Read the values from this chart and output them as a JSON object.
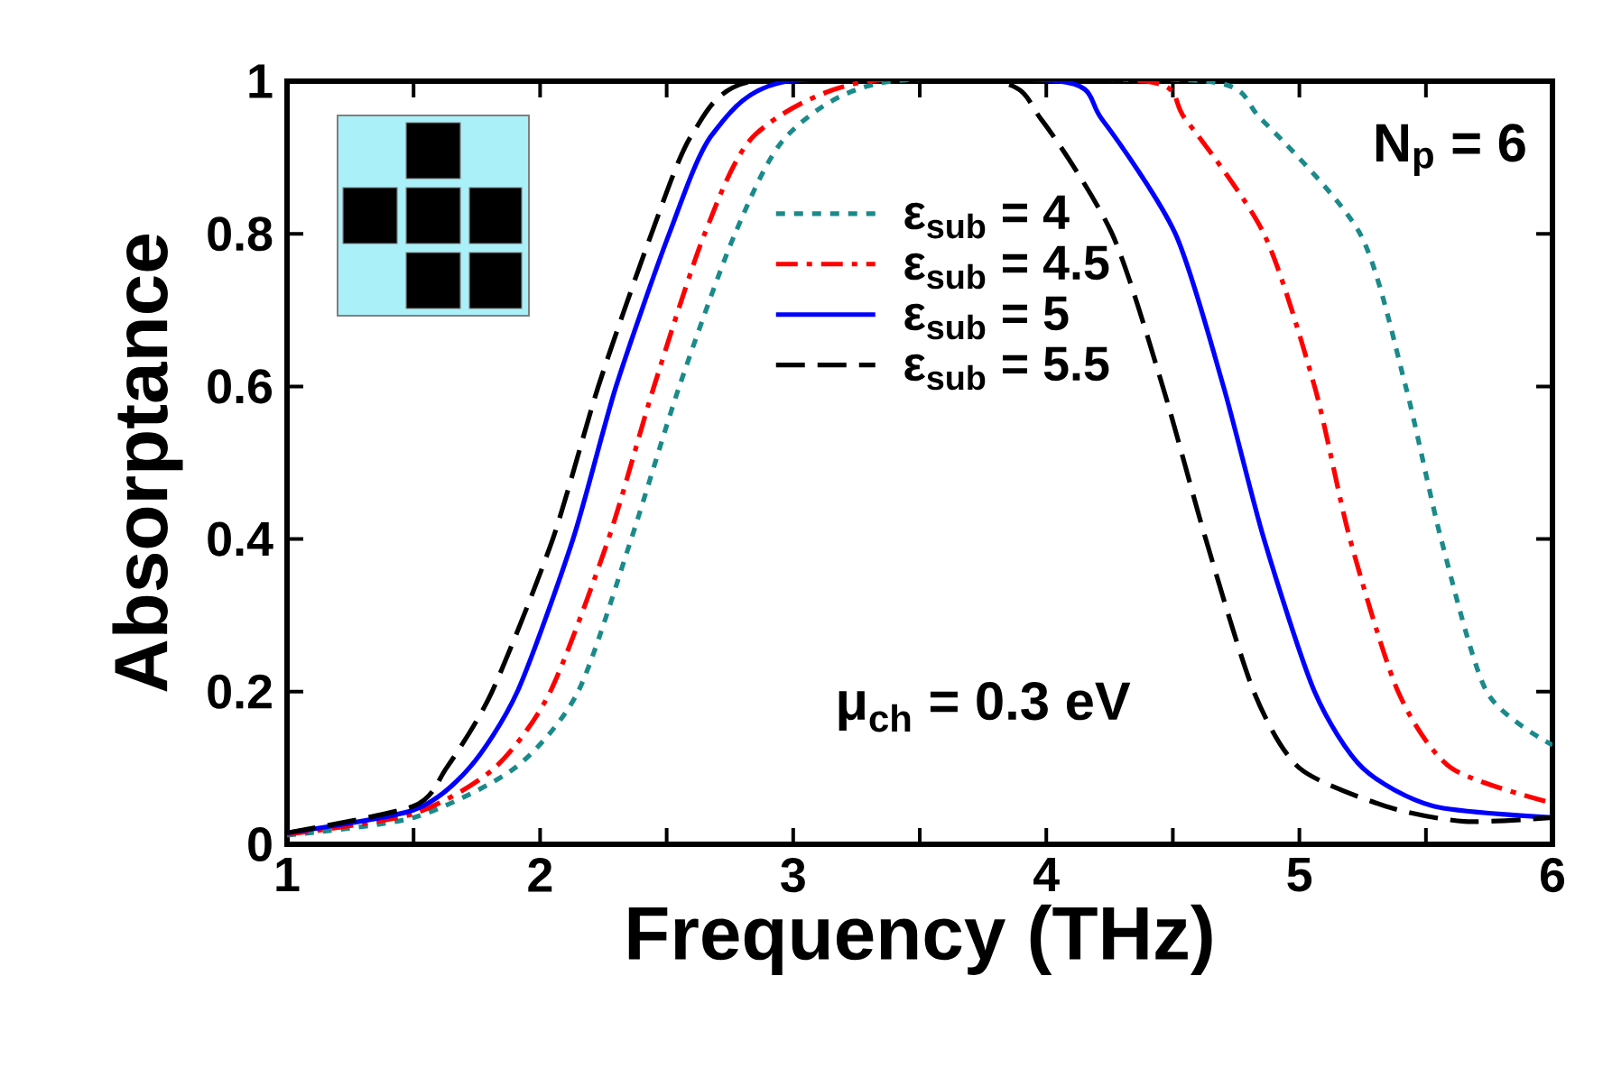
{
  "chart_data": {
    "type": "line",
    "xlabel": "Frequency (THz)",
    "ylabel": "Absorptance",
    "xlim": [
      1,
      6
    ],
    "ylim": [
      0,
      1
    ],
    "xticks": [
      1,
      {
        "value": 1.5,
        "label": null
      },
      2,
      {
        "value": 2.5,
        "label": null
      },
      3,
      {
        "value": 3.5,
        "label": null
      },
      4,
      {
        "value": 4.5,
        "label": null
      },
      5,
      {
        "value": 5.5,
        "label": null
      },
      6
    ],
    "yticks": [
      0,
      0.2,
      0.4,
      0.6,
      0.8,
      1
    ],
    "legend": "top",
    "annotations": [
      "N$_{p}$ = 6",
      "μ$_{ch}$ = 0.3 eV"
    ],
    "series": [
      {
        "name": "ε$_{sub}$ = 4",
        "color": "#1a8a8a",
        "line_style": "dotted",
        "x": [
          1,
          1.5,
          1.9,
          2.15,
          2.36,
          2.55,
          2.77,
          2.98,
          3.39,
          4.63,
          4.85,
          5.24,
          5.42,
          5.56,
          5.74,
          6
        ],
        "values": [
          0.012,
          0.035,
          0.1,
          0.2,
          0.4,
          0.6,
          0.8,
          0.93,
          1,
          1,
          0.95,
          0.8,
          0.6,
          0.4,
          0.2,
          0.13
        ]
      },
      {
        "name": "ε$_{sub}$ = 4.5",
        "color": "#ff0000",
        "line_style": "dashdot",
        "x": [
          1,
          1.5,
          1.82,
          2.04,
          2.27,
          2.45,
          2.65,
          2.85,
          3.3,
          4.39,
          4.55,
          4.86,
          5.06,
          5.2,
          5.39,
          5.6,
          6
        ],
        "values": [
          0.013,
          0.04,
          0.1,
          0.2,
          0.4,
          0.6,
          0.8,
          0.93,
          1,
          1,
          0.95,
          0.8,
          0.6,
          0.4,
          0.2,
          0.1,
          0.054
        ]
      },
      {
        "name": "ε$_{sub}$ = 5",
        "color": "#0000ff",
        "line_style": "solid",
        "x": [
          1,
          1.5,
          1.72,
          1.91,
          2.13,
          2.3,
          2.51,
          2.68,
          2.98,
          4.05,
          4.22,
          4.51,
          4.7,
          4.86,
          5.06,
          5.25,
          5.53,
          6
        ],
        "values": [
          0.015,
          0.045,
          0.1,
          0.2,
          0.4,
          0.6,
          0.8,
          0.93,
          1,
          1,
          0.95,
          0.8,
          0.6,
          0.4,
          0.2,
          0.1,
          0.05,
          0.035
        ]
      },
      {
        "name": "ε$_{sub}$ = 5.5",
        "color": "#000000",
        "line_style": "dashed",
        "x": [
          1,
          1.5,
          1.63,
          1.81,
          2.05,
          2.23,
          2.44,
          2.6,
          2.84,
          3.79,
          3.98,
          4.26,
          4.46,
          4.63,
          4.82,
          5.0,
          5.34,
          5.65,
          6
        ],
        "values": [
          0.015,
          0.05,
          0.1,
          0.2,
          0.4,
          0.6,
          0.8,
          0.93,
          1,
          1,
          0.95,
          0.8,
          0.6,
          0.4,
          0.2,
          0.1,
          0.05,
          0.03,
          0.035
        ]
      }
    ]
  }
}
